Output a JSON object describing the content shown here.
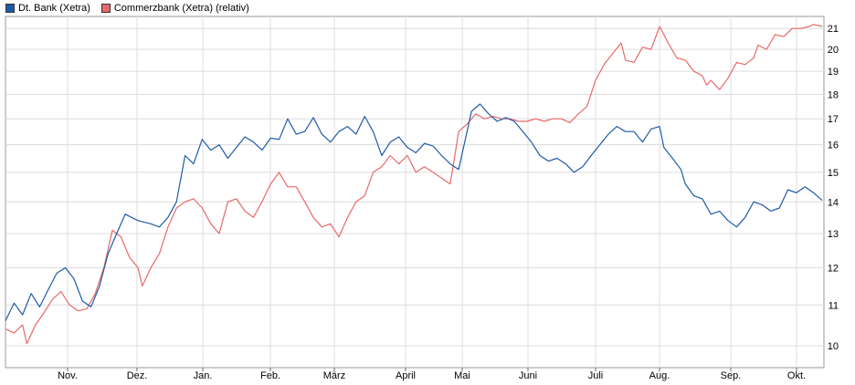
{
  "legend": {
    "series1": {
      "label": "Dt. Bank (Xetra)",
      "color": "#1f5ba8"
    },
    "series2": {
      "label": "Commerzbank (Xetra) (relativ)",
      "color": "#e8696a"
    }
  },
  "chart_data": {
    "type": "line",
    "x_ticks": [
      "Nov.",
      "Dez.",
      "Jan.",
      "Feb.",
      "März",
      "April",
      "Mai",
      "Juni",
      "Juli",
      "Aug.",
      "Sep.",
      "Okt."
    ],
    "y_ticks": [
      10,
      11,
      12,
      13,
      14,
      15,
      16,
      17,
      18,
      19,
      20,
      21
    ],
    "y_scale": "log",
    "ylim": [
      9.5,
      21.6
    ],
    "grid": true,
    "legend_position": "top-left",
    "series": [
      {
        "name": "Dt. Bank (Xetra)",
        "color": "#1f5ba8",
        "points": [
          [
            0,
            10.6
          ],
          [
            4,
            11.05
          ],
          [
            8,
            10.75
          ],
          [
            12,
            11.3
          ],
          [
            16,
            10.95
          ],
          [
            20,
            11.4
          ],
          [
            24,
            11.85
          ],
          [
            28,
            12.0
          ],
          [
            32,
            11.7
          ],
          [
            36,
            11.1
          ],
          [
            40,
            10.95
          ],
          [
            44,
            11.5
          ],
          [
            48,
            12.4
          ],
          [
            52,
            13.0
          ],
          [
            56,
            13.6
          ],
          [
            62,
            13.4
          ],
          [
            68,
            13.3
          ],
          [
            72,
            13.2
          ],
          [
            76,
            13.5
          ],
          [
            80,
            14.0
          ],
          [
            84,
            15.6
          ],
          [
            88,
            15.3
          ],
          [
            92,
            16.2
          ],
          [
            96,
            15.8
          ],
          [
            100,
            16.0
          ],
          [
            104,
            15.5
          ],
          [
            108,
            15.9
          ],
          [
            112,
            16.3
          ],
          [
            116,
            16.1
          ],
          [
            120,
            15.8
          ],
          [
            124,
            16.25
          ],
          [
            128,
            16.2
          ],
          [
            132,
            17.0
          ],
          [
            136,
            16.4
          ],
          [
            140,
            16.5
          ],
          [
            144,
            17.05
          ],
          [
            148,
            16.4
          ],
          [
            152,
            16.1
          ],
          [
            156,
            16.5
          ],
          [
            160,
            16.7
          ],
          [
            164,
            16.4
          ],
          [
            168,
            17.1
          ],
          [
            172,
            16.5
          ],
          [
            176,
            15.6
          ],
          [
            180,
            16.1
          ],
          [
            184,
            16.3
          ],
          [
            188,
            15.9
          ],
          [
            192,
            15.7
          ],
          [
            196,
            16.05
          ],
          [
            200,
            15.95
          ],
          [
            204,
            15.6
          ],
          [
            208,
            15.3
          ],
          [
            212,
            15.1
          ],
          [
            214,
            15.8
          ],
          [
            218,
            17.3
          ],
          [
            222,
            17.6
          ],
          [
            226,
            17.2
          ],
          [
            230,
            16.9
          ],
          [
            234,
            17.05
          ],
          [
            238,
            16.9
          ],
          [
            242,
            16.5
          ],
          [
            246,
            16.1
          ],
          [
            250,
            15.6
          ],
          [
            254,
            15.4
          ],
          [
            258,
            15.5
          ],
          [
            262,
            15.3
          ],
          [
            266,
            15.0
          ],
          [
            270,
            15.2
          ],
          [
            274,
            15.6
          ],
          [
            278,
            16.0
          ],
          [
            282,
            16.4
          ],
          [
            286,
            16.7
          ],
          [
            290,
            16.5
          ],
          [
            294,
            16.5
          ],
          [
            298,
            16.1
          ],
          [
            302,
            16.6
          ],
          [
            306,
            16.7
          ],
          [
            308,
            15.9
          ],
          [
            312,
            15.5
          ],
          [
            316,
            15.1
          ],
          [
            318,
            14.6
          ],
          [
            322,
            14.2
          ],
          [
            326,
            14.1
          ],
          [
            330,
            13.6
          ],
          [
            334,
            13.7
          ],
          [
            338,
            13.4
          ],
          [
            342,
            13.2
          ],
          [
            346,
            13.5
          ],
          [
            350,
            14.0
          ],
          [
            354,
            13.9
          ],
          [
            358,
            13.7
          ],
          [
            362,
            13.8
          ],
          [
            366,
            14.4
          ],
          [
            370,
            14.3
          ],
          [
            374,
            14.5
          ],
          [
            378,
            14.3
          ],
          [
            382,
            14.05
          ]
        ]
      },
      {
        "name": "Commerzbank (Xetra) (relativ)",
        "color": "#e8696a",
        "points": [
          [
            0,
            10.4
          ],
          [
            4,
            10.3
          ],
          [
            8,
            10.5
          ],
          [
            10,
            10.05
          ],
          [
            14,
            10.5
          ],
          [
            18,
            10.8
          ],
          [
            22,
            11.15
          ],
          [
            26,
            11.35
          ],
          [
            30,
            11.0
          ],
          [
            34,
            10.85
          ],
          [
            38,
            10.9
          ],
          [
            42,
            11.3
          ],
          [
            46,
            12.0
          ],
          [
            50,
            13.1
          ],
          [
            54,
            12.9
          ],
          [
            58,
            12.3
          ],
          [
            62,
            12.0
          ],
          [
            64,
            11.5
          ],
          [
            68,
            12.0
          ],
          [
            72,
            12.4
          ],
          [
            76,
            13.2
          ],
          [
            80,
            13.8
          ],
          [
            84,
            14.0
          ],
          [
            88,
            14.1
          ],
          [
            92,
            13.8
          ],
          [
            96,
            13.3
          ],
          [
            100,
            13.0
          ],
          [
            104,
            14.0
          ],
          [
            108,
            14.1
          ],
          [
            112,
            13.7
          ],
          [
            116,
            13.5
          ],
          [
            120,
            14.0
          ],
          [
            124,
            14.6
          ],
          [
            128,
            15.0
          ],
          [
            132,
            14.5
          ],
          [
            136,
            14.5
          ],
          [
            140,
            14.0
          ],
          [
            144,
            13.5
          ],
          [
            148,
            13.2
          ],
          [
            152,
            13.3
          ],
          [
            156,
            12.9
          ],
          [
            160,
            13.5
          ],
          [
            164,
            14.0
          ],
          [
            168,
            14.2
          ],
          [
            172,
            15.0
          ],
          [
            176,
            15.2
          ],
          [
            180,
            15.6
          ],
          [
            184,
            15.3
          ],
          [
            188,
            15.6
          ],
          [
            192,
            15.0
          ],
          [
            196,
            15.2
          ],
          [
            200,
            15.0
          ],
          [
            204,
            14.8
          ],
          [
            208,
            14.6
          ],
          [
            210,
            15.5
          ],
          [
            212,
            16.5
          ],
          [
            216,
            16.8
          ],
          [
            220,
            17.2
          ],
          [
            224,
            17.0
          ],
          [
            228,
            17.1
          ],
          [
            232,
            17.0
          ],
          [
            236,
            17.0
          ],
          [
            240,
            16.9
          ],
          [
            244,
            16.9
          ],
          [
            248,
            17.0
          ],
          [
            252,
            16.9
          ],
          [
            256,
            17.0
          ],
          [
            260,
            17.0
          ],
          [
            264,
            16.85
          ],
          [
            268,
            17.2
          ],
          [
            272,
            17.5
          ],
          [
            276,
            18.6
          ],
          [
            280,
            19.3
          ],
          [
            284,
            19.8
          ],
          [
            288,
            20.3
          ],
          [
            290,
            19.5
          ],
          [
            294,
            19.4
          ],
          [
            298,
            20.1
          ],
          [
            302,
            20.0
          ],
          [
            306,
            21.1
          ],
          [
            310,
            20.3
          ],
          [
            314,
            19.6
          ],
          [
            318,
            19.5
          ],
          [
            322,
            19.0
          ],
          [
            326,
            18.8
          ],
          [
            328,
            18.4
          ],
          [
            330,
            18.6
          ],
          [
            334,
            18.2
          ],
          [
            338,
            18.7
          ],
          [
            342,
            19.4
          ],
          [
            346,
            19.3
          ],
          [
            350,
            19.6
          ],
          [
            352,
            20.2
          ],
          [
            356,
            20.0
          ],
          [
            360,
            20.7
          ],
          [
            364,
            20.6
          ],
          [
            368,
            21.0
          ],
          [
            372,
            21.0
          ],
          [
            376,
            21.1
          ],
          [
            378,
            21.2
          ],
          [
            382,
            21.1
          ]
        ]
      }
    ]
  }
}
